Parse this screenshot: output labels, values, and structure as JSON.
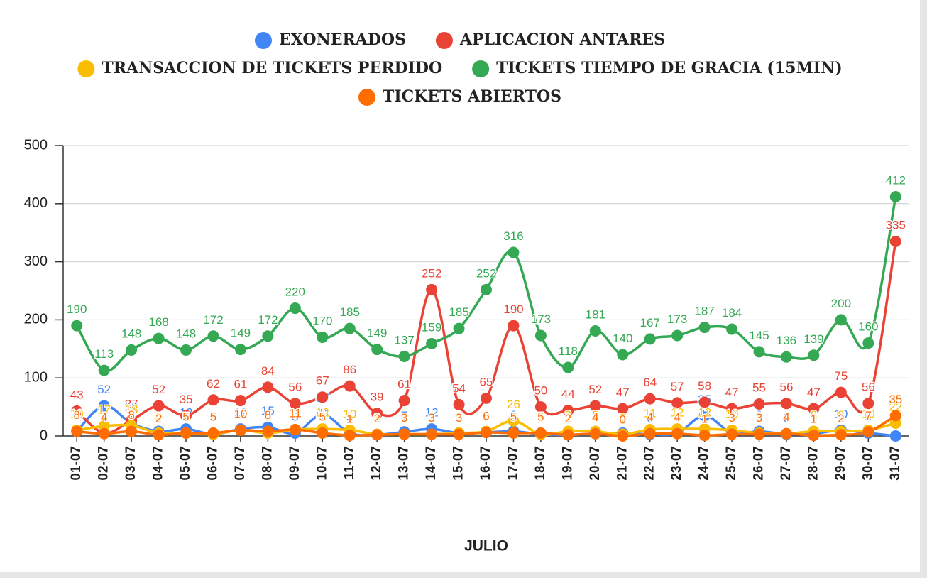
{
  "chart_data": {
    "type": "line",
    "x_label": "JULIO",
    "categories": [
      "01-07",
      "02-07",
      "03-07",
      "04-07",
      "05-07",
      "06-07",
      "07-07",
      "08-07",
      "09-07",
      "10-07",
      "11-07",
      "12-07",
      "13-07",
      "14-07",
      "15-07",
      "16-07",
      "17-07",
      "18-07",
      "19-07",
      "20-07",
      "21-07",
      "22-07",
      "23-07",
      "24-07",
      "25-07",
      "26-07",
      "27-07",
      "28-07",
      "29-07",
      "30-07",
      "31-07"
    ],
    "ylim": [
      0,
      500
    ],
    "yticks": [
      0,
      100,
      200,
      300,
      400,
      500
    ],
    "grid": true,
    "legend": "top",
    "data_labels": true,
    "series": [
      {
        "name": "EXONERADOS",
        "color": "#4285f4",
        "values": [
          8,
          52,
          22,
          8,
          12,
          3,
          12,
          15,
          5,
          37,
          5,
          2,
          7,
          12,
          5,
          6,
          8,
          3,
          2,
          4,
          5,
          3,
          5,
          35,
          5,
          8,
          3,
          4,
          10,
          5,
          0
        ]
      },
      {
        "name": "APLICACION ANTARES",
        "color": "#ea4335",
        "values": [
          43,
          5,
          27,
          52,
          35,
          62,
          61,
          84,
          56,
          67,
          86,
          39,
          61,
          252,
          54,
          65,
          190,
          50,
          44,
          52,
          47,
          64,
          57,
          58,
          47,
          55,
          56,
          47,
          75,
          56,
          335
        ]
      },
      {
        "name": "TRANSACCION DE TICKETS PERDIDO",
        "color": "#fbbc04",
        "values": [
          10,
          17,
          18,
          5,
          5,
          3,
          10,
          5,
          11,
          12,
          10,
          3,
          3,
          3,
          5,
          8,
          26,
          3,
          8,
          8,
          3,
          11,
          12,
          12,
          10,
          5,
          4,
          8,
          8,
          10,
          22
        ]
      },
      {
        "name": "TICKETS TIEMPO DE GRACIA (15MIN)",
        "color": "#34a853",
        "values": [
          190,
          113,
          148,
          168,
          148,
          172,
          149,
          172,
          220,
          170,
          185,
          149,
          137,
          159,
          185,
          252,
          316,
          173,
          118,
          181,
          140,
          167,
          173,
          187,
          184,
          145,
          136,
          139,
          200,
          160,
          412
        ]
      },
      {
        "name": "TICKETS ABIERTOS",
        "color": "#ff6d01",
        "values": [
          8,
          4,
          8,
          2,
          5,
          5,
          10,
          8,
          11,
          5,
          1,
          2,
          3,
          3,
          3,
          6,
          5,
          5,
          2,
          4,
          0,
          4,
          4,
          1,
          3,
          3,
          4,
          1,
          2,
          7,
          35
        ]
      }
    ]
  }
}
